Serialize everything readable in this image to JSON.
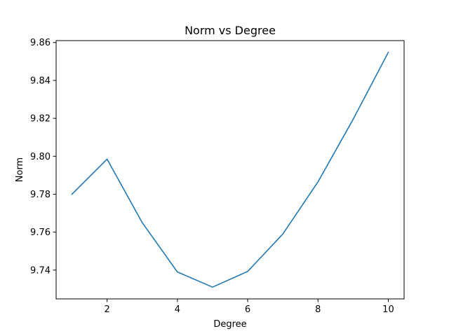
{
  "chart_data": {
    "type": "line",
    "title": "Norm vs Degree",
    "xlabel": "Degree",
    "ylabel": "Norm",
    "x": [
      1,
      2,
      3,
      4,
      5,
      6,
      7,
      8,
      9,
      10
    ],
    "series": [
      {
        "values": [
          9.78,
          9.7985,
          9.765,
          9.739,
          9.731,
          9.7393,
          9.759,
          9.7865,
          9.8195,
          9.8548
        ],
        "color": "#1f77b4"
      }
    ],
    "xlim": [
      0.55,
      10.45
    ],
    "ylim": [
      9.7248,
      9.861
    ],
    "xticks": [
      2,
      4,
      6,
      8,
      10
    ],
    "xtick_labels": [
      "2",
      "4",
      "6",
      "8",
      "10"
    ],
    "yticks": [
      9.74,
      9.76,
      9.78,
      9.8,
      9.82,
      9.84,
      9.86
    ],
    "ytick_labels": [
      "9.74",
      "9.76",
      "9.78",
      "9.80",
      "9.82",
      "9.84",
      "9.86"
    ],
    "grid": false,
    "legend": "none"
  }
}
